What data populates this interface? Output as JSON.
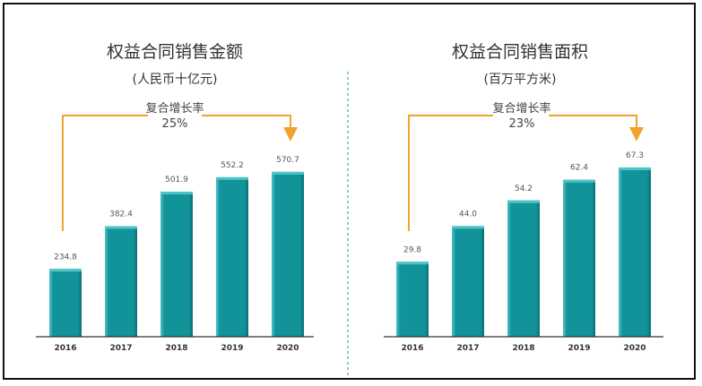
{
  "colors": {
    "bar": "#12939a",
    "bar_light": "#4fc3c8",
    "bar_dark": "#0b6f74",
    "arrow": "#f2a32f",
    "divider": "#4aa8ad",
    "axis": "#333333"
  },
  "chart_data": [
    {
      "type": "bar",
      "title": "权益合同销售金额",
      "subtitle": "(人民币十亿元)",
      "categories": [
        "2016",
        "2017",
        "2018",
        "2019",
        "2020"
      ],
      "values": [
        234.8,
        382.4,
        501.9,
        552.2,
        570.7
      ],
      "value_labels": [
        "234.8",
        "382.4",
        "501.9",
        "552.2",
        "570.7"
      ],
      "ylim": [
        0,
        620
      ],
      "grid": false,
      "annotation": {
        "label": "复合增长率",
        "value": "25%"
      }
    },
    {
      "type": "bar",
      "title": "权益合同销售面积",
      "subtitle": "(百万平方米)",
      "categories": [
        "2016",
        "2017",
        "2018",
        "2019",
        "2020"
      ],
      "values": [
        29.8,
        44.0,
        54.2,
        62.4,
        67.3
      ],
      "value_labels": [
        "29.8",
        "44.0",
        "54.2",
        "62.4",
        "67.3"
      ],
      "ylim": [
        0,
        71.2
      ],
      "grid": false,
      "annotation": {
        "label": "复合增长率",
        "value": "23%"
      }
    }
  ]
}
